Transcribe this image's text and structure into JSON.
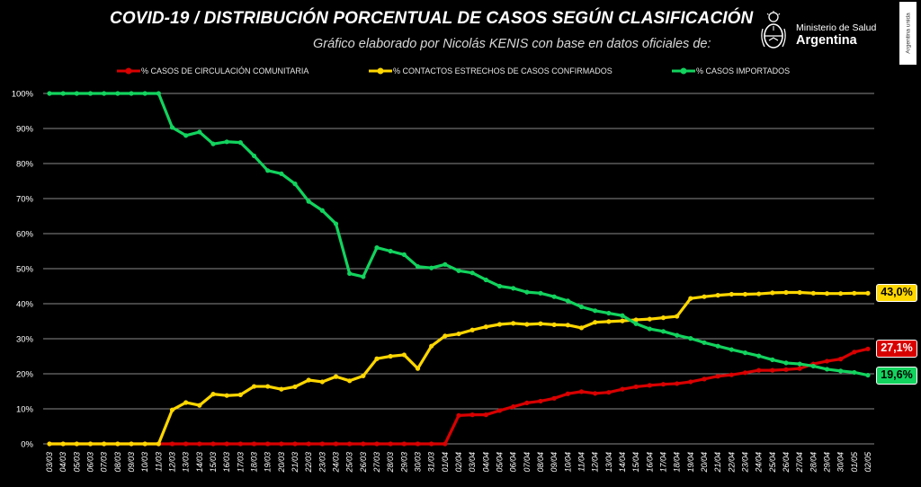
{
  "header": {
    "title": "COVID-19  /  DISTRIBUCIÓN PORCENTUAL DE CASOS SEGÚN CLASIFICACIÓN",
    "subtitle": "Gráfico elaborado por Nicolás KENIS con base en datos oficiales de:",
    "logo_line1": "Ministerio de Salud",
    "logo_line2": "Argentina",
    "side_badge": "Argentina unida"
  },
  "colors": {
    "background": "#000000",
    "grid": "#8a8a8a",
    "axis_text": "#ffffff",
    "comunitaria": "#d90000",
    "contactos": "#ffd700",
    "importados": "#12d35e"
  },
  "legend_position": "top",
  "chart_data": {
    "type": "line",
    "title": "COVID-19  /  DISTRIBUCIÓN PORCENTUAL DE CASOS SEGÚN CLASIFICACIÓN",
    "xlabel": "",
    "ylabel": "",
    "ylim": [
      0,
      100
    ],
    "yticks": [
      0,
      10,
      20,
      30,
      40,
      50,
      60,
      70,
      80,
      90,
      100
    ],
    "ytick_suffix": "%",
    "grid": true,
    "categories": [
      "03/03",
      "04/03",
      "05/03",
      "06/03",
      "07/03",
      "08/03",
      "09/03",
      "10/03",
      "11/03",
      "12/03",
      "13/03",
      "14/03",
      "15/03",
      "16/03",
      "17/03",
      "18/03",
      "19/03",
      "20/03",
      "21/03",
      "22/03",
      "23/03",
      "24/03",
      "25/03",
      "26/03",
      "27/03",
      "28/03",
      "29/03",
      "30/03",
      "31/03",
      "01/04",
      "02/04",
      "03/04",
      "04/04",
      "05/04",
      "06/04",
      "07/04",
      "08/04",
      "09/04",
      "10/04",
      "11/04",
      "12/04",
      "13/04",
      "14/04",
      "15/04",
      "16/04",
      "17/04",
      "18/04",
      "19/04",
      "20/04",
      "21/04",
      "22/04",
      "23/04",
      "24/04",
      "25/04",
      "26/04",
      "27/04",
      "28/04",
      "29/04",
      "30/04",
      "01/05",
      "02/05"
    ],
    "series": [
      {
        "name": "% CASOS DE CIRCULACIÓN COMUNITARIA",
        "color": "#d90000",
        "end_label": "27,1%",
        "values": [
          0,
          0,
          0,
          0,
          0,
          0,
          0,
          0,
          0,
          0,
          0,
          0,
          0,
          0,
          0,
          0,
          0,
          0,
          0,
          0,
          0,
          0,
          0,
          0,
          0,
          0,
          0,
          0,
          0,
          0,
          8.1,
          8.3,
          8.3,
          9.5,
          10.6,
          11.7,
          12.2,
          13.0,
          14.3,
          14.9,
          14.4,
          14.7,
          15.6,
          16.3,
          16.7,
          17.0,
          17.2,
          17.7,
          18.5,
          19.3,
          19.7,
          20.3,
          21.0,
          21.0,
          21.2,
          21.5,
          22.8,
          23.6,
          24.2,
          26.2,
          27.1
        ]
      },
      {
        "name": "% CONTACTOS ESTRECHOS DE CASOS CONFIRMADOS",
        "color": "#ffd700",
        "end_label": "43,0%",
        "values": [
          0,
          0,
          0,
          0,
          0,
          0,
          0,
          0,
          0,
          9.7,
          11.8,
          11.0,
          14.2,
          13.8,
          14.0,
          16.4,
          16.4,
          15.6,
          16.3,
          18.2,
          17.7,
          19.2,
          18.0,
          19.4,
          24.3,
          25.0,
          25.4,
          21.5,
          27.9,
          30.8,
          31.4,
          32.5,
          33.4,
          34.1,
          34.4,
          34.1,
          34.3,
          34.0,
          33.9,
          33.1,
          34.7,
          34.9,
          35.1,
          35.4,
          35.6,
          36.0,
          36.4,
          41.5,
          42.0,
          42.4,
          42.7,
          42.7,
          42.8,
          43.1,
          43.2,
          43.2,
          43.0,
          42.9,
          42.9,
          43.0,
          43.0
        ]
      },
      {
        "name": "% CASOS IMPORTADOS",
        "color": "#12d35e",
        "end_label": "19,6%",
        "values": [
          100,
          100,
          100,
          100,
          100,
          100,
          100,
          100,
          100,
          90.3,
          88.0,
          89.0,
          85.6,
          86.2,
          86.0,
          82.2,
          78.0,
          77.1,
          74.2,
          69.2,
          66.6,
          62.8,
          48.6,
          47.7,
          56.0,
          55.0,
          54.0,
          50.6,
          50.2,
          51.2,
          49.4,
          48.8,
          46.8,
          45.0,
          44.4,
          43.3,
          43.0,
          42.0,
          40.8,
          39.1,
          38.0,
          37.3,
          36.6,
          34.3,
          32.8,
          32.1,
          31.0,
          30.1,
          28.9,
          27.9,
          26.9,
          26.0,
          25.1,
          24.0,
          23.1,
          22.8,
          22.2,
          21.3,
          20.8,
          20.4,
          19.6
        ]
      }
    ]
  }
}
